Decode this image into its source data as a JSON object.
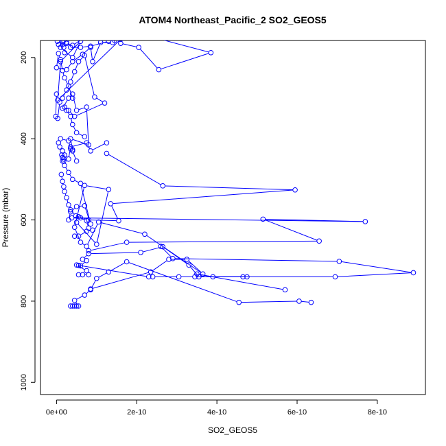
{
  "chart_data": {
    "type": "line",
    "title": "ATOM4 Northeast_Pacific_2 SO2_GEOS5",
    "xlabel": "SO2_GEOS5",
    "ylabel": "Pressure (mbar)",
    "xlim": [
      -4e-11,
      9.2e-10
    ],
    "ylim": [
      1030,
      158
    ],
    "y_reversed": true,
    "grid": false,
    "legend": "none",
    "x_ticks": [
      {
        "value": 0,
        "label": "0e+00"
      },
      {
        "value": 2e-10,
        "label": "2e-10"
      },
      {
        "value": 4e-10,
        "label": "4e-10"
      },
      {
        "value": 6e-10,
        "label": "6e-10"
      },
      {
        "value": 8e-10,
        "label": "8e-10"
      }
    ],
    "y_ticks": [
      {
        "value": 200,
        "label": "200"
      },
      {
        "value": 400,
        "label": "400"
      },
      {
        "value": 600,
        "label": "600"
      },
      {
        "value": 800,
        "label": "800"
      },
      {
        "value": 1000,
        "label": "1000"
      }
    ],
    "color": "#0000ff",
    "marker": "open-circle",
    "series": [
      {
        "x": [
          3.5e-11,
          4e-11,
          4.5e-11,
          5e-11,
          5.5e-11,
          4.5e-11,
          7e-11,
          8.5e-11,
          1e-10,
          1.3e-10,
          1.75e-10,
          4.55e-10,
          6.05e-10,
          6.35e-10
        ],
        "y": [
          812,
          812,
          812,
          812,
          812,
          798,
          785,
          772,
          744,
          728,
          703,
          803,
          800,
          803
        ]
      },
      {
        "x": [
          5.5e-11,
          6e-11,
          7.5e-11,
          6.5e-11,
          8e-11,
          2.1e-10,
          2.65e-10,
          3.3e-10,
          3.55e-10,
          4.65e-10,
          4.75e-10,
          3.9e-10,
          3.5e-10,
          5.7e-10
        ],
        "y": [
          712,
          713,
          700,
          697,
          683,
          680,
          666,
          711,
          740,
          740,
          740,
          740,
          733,
          772
        ]
      },
      {
        "x": [
          5.5e-11,
          6.5e-11,
          8e-11,
          7.5e-11,
          5e-11,
          2.3e-10,
          2.4e-10,
          3.05e-10,
          3.45e-10,
          6.95e-10,
          8.9e-10,
          7.05e-10,
          2.9e-10,
          2.6e-10
        ],
        "y": [
          735,
          735,
          735,
          725,
          711,
          740,
          740,
          740,
          740,
          740,
          730,
          702,
          695,
          665
        ]
      },
      {
        "x": [
          8e-11,
          1.75e-10,
          6.55e-10,
          5.15e-10,
          7.7e-10,
          6e-11,
          3.8e-11,
          5.5e-11,
          8e-11,
          1.55e-10,
          1.35e-10,
          5.95e-10,
          2.65e-10,
          1.25e-10
        ],
        "y": [
          676,
          655,
          652,
          598,
          604,
          595,
          595,
          592,
          600,
          602,
          560,
          526,
          516,
          436
        ]
      },
      {
        "x": [
          8.5e-11,
          2.35e-10,
          2.8e-10,
          3.25e-10,
          3.65e-10,
          2.2e-10,
          1.05e-10,
          7.5e-11,
          6e-11,
          4.5e-11,
          7e-11,
          1.3e-10,
          1e-10,
          5e-11
        ],
        "y": [
          770,
          728,
          697,
          697,
          733,
          635,
          605,
          665,
          655,
          618,
          515,
          525,
          660,
          606
        ]
      },
      {
        "x": [
          4.5e-11,
          5.5e-11,
          7.5e-11,
          9e-11,
          8e-11,
          7.5e-11,
          4.8e-11,
          3.5e-11,
          3e-11,
          2.5e-11,
          2e-11,
          1.8e-11,
          1.5e-11,
          1.2e-11
        ],
        "y": [
          640,
          640,
          628,
          625,
          620,
          602,
          590,
          575,
          563,
          545,
          530,
          518,
          505,
          488
        ]
      },
      {
        "x": [
          3e-11,
          3.5e-11,
          5e-11,
          7e-11,
          8.5e-11,
          6e-11,
          4e-11,
          3e-11,
          2e-11,
          1.8e-11,
          1.5e-11,
          1.3e-11,
          1.8e-11,
          1.5e-11
        ],
        "y": [
          600,
          580,
          567,
          565,
          610,
          510,
          500,
          483,
          466,
          455,
          446,
          440,
          450,
          455
        ]
      },
      {
        "x": [
          5e-11,
          4e-11,
          3.5e-11,
          3e-11,
          1e-11,
          5e-12,
          8e-12,
          1.5e-11,
          2e-11,
          3e-11,
          3.5e-11,
          7.5e-11,
          8.5e-11,
          1.25e-10
        ],
        "y": [
          455,
          430,
          425,
          405,
          400,
          410,
          420,
          430,
          440,
          450,
          420,
          410,
          430,
          410
        ]
      },
      {
        "x": [
          7e-11,
          5e-11,
          4e-11,
          3.5e-11,
          2.5e-11,
          2e-11,
          1.5e-11,
          3e-11,
          4e-11,
          5e-11,
          7.5e-11,
          8e-11,
          3.5e-11,
          4e-11
        ],
        "y": [
          395,
          385,
          365,
          345,
          330,
          322,
          325,
          300,
          290,
          330,
          322,
          415,
          400,
          427
        ]
      },
      {
        "x": [
          0.0,
          -2e-12,
          3e-12,
          8e-12,
          1.5e-11,
          2.5e-11,
          3.5e-11,
          4.5e-11,
          5.5e-11,
          7e-11,
          9.5e-11,
          1.2e-10,
          4.5e-11,
          3e-11
        ],
        "y": [
          290,
          345,
          350,
          310,
          300,
          280,
          260,
          235,
          210,
          195,
          297,
          312,
          345,
          330
        ]
      },
      {
        "x": [
          4e-11,
          3e-11,
          2e-11,
          1.5e-11,
          1e-11,
          5e-12,
          0.0,
          2.5e-11,
          4e-11,
          6.5e-11,
          8.5e-11,
          9e-11,
          1.1e-10,
          1.4e-10
        ],
        "y": [
          300,
          270,
          250,
          232,
          205,
          190,
          225,
          230,
          210,
          192,
          175,
          210,
          163,
          163
        ]
      },
      {
        "x": [
          1.6e-10,
          2.05e-10,
          2.55e-10,
          3.85e-10,
          2.4e-10,
          1.45e-10,
          8e-11,
          4e-11,
          2.5e-11,
          1.8e-11,
          1.5e-11,
          1.5e-11,
          1.8e-11,
          2e-11
        ],
        "y": [
          165,
          175,
          230,
          188,
          150,
          158,
          145,
          170,
          165,
          158,
          160,
          168,
          175,
          188
        ]
      },
      {
        "x": [
          1.3e-10,
          8.5e-11,
          6e-11,
          3.5e-11,
          2.5e-11,
          1.5e-11,
          2e-12,
          5e-12,
          1e-11,
          4e-11,
          6e-11,
          1e-11,
          3e-12,
          1.6e-10
        ],
        "y": [
          160,
          172,
          175,
          175,
          162,
          162,
          160,
          168,
          175,
          200,
          160,
          210,
          305,
          155
        ]
      }
    ]
  }
}
